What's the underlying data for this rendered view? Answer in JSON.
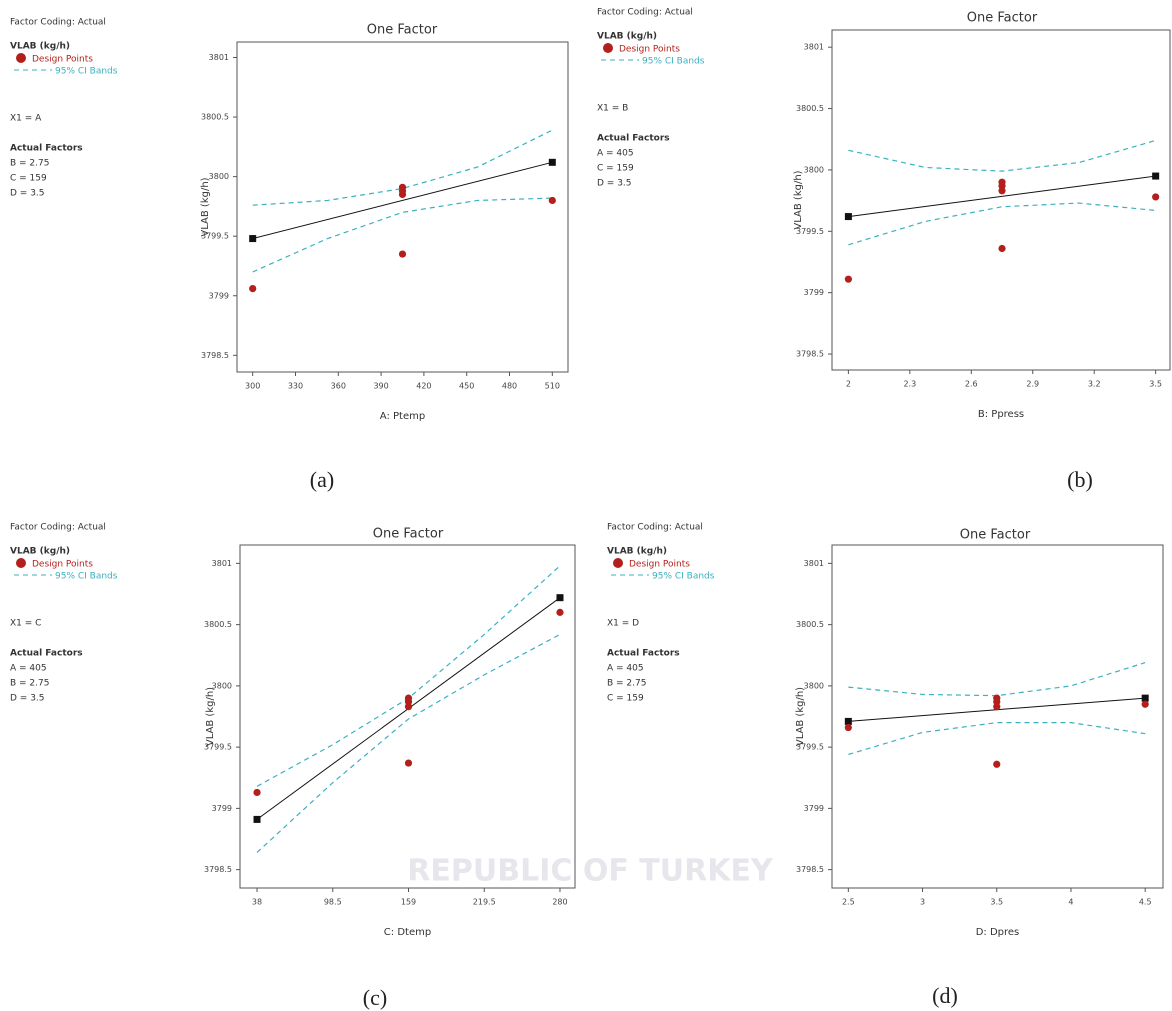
{
  "watermark": "REPUBLIC OF TURKEY",
  "chart_data": [
    {
      "type": "scatter",
      "panel_label": "(a)",
      "title": "One Factor",
      "xlabel": "A: Ptemp",
      "ylabel": "VLAB (kg/h)",
      "notes": {
        "coding": "Factor Coding: Actual",
        "response": "VLAB (kg/h)",
        "x1": "X1 = A",
        "factors_title": "Actual Factors",
        "factors": [
          "B = 2.75",
          "C = 159",
          "D = 3.5"
        ]
      },
      "xlim": [
        289,
        521
      ],
      "ylim": [
        3798.36,
        3801.13
      ],
      "xticks": [
        300,
        330,
        360,
        390,
        420,
        450,
        480,
        510
      ],
      "yticks": [
        3798.5,
        3799,
        3799.5,
        3800,
        3800.5,
        3801
      ],
      "series": [
        {
          "name": "Design Points",
          "color": "#b3201c",
          "x": [
            300,
            405,
            405,
            405,
            405,
            510
          ],
          "values": [
            3799.06,
            3799.91,
            3799.88,
            3799.85,
            3799.35,
            3799.8
          ]
        },
        {
          "name": "95% CI Bands",
          "color": "#3bb1c0",
          "x": [
            300,
            352.5,
            405,
            457.5,
            510
          ],
          "upper": [
            3799.76,
            3799.8,
            3799.9,
            3800.08,
            3800.39
          ],
          "lower": [
            3799.2,
            3799.48,
            3799.7,
            3799.8,
            3799.82
          ]
        }
      ],
      "fit": {
        "color": "#111111",
        "x": [
          300,
          510
        ],
        "values": [
          3799.48,
          3800.12
        ]
      }
    },
    {
      "type": "scatter",
      "panel_label": "(b)",
      "title": "One Factor",
      "xlabel": "B: Ppress",
      "ylabel": "VLAB (kg/h)",
      "notes": {
        "coding": "Factor Coding: Actual",
        "response": "VLAB (kg/h)",
        "x1": "X1 = B",
        "factors_title": "Actual Factors",
        "factors": [
          "A = 405",
          "C = 159",
          "D = 3.5"
        ]
      },
      "xlim": [
        1.92,
        3.57
      ],
      "ylim": [
        3798.37,
        3801.14
      ],
      "xticks": [
        2,
        2.3,
        2.6,
        2.9,
        3.2,
        3.5
      ],
      "yticks": [
        3798.5,
        3799,
        3799.5,
        3800,
        3800.5,
        3801
      ],
      "series": [
        {
          "name": "Design Points",
          "color": "#b3201c",
          "x": [
            2,
            2.75,
            2.75,
            2.75,
            2.75,
            3.5
          ],
          "values": [
            3799.11,
            3799.9,
            3799.87,
            3799.83,
            3799.36,
            3799.78
          ]
        },
        {
          "name": "95% CI Bands",
          "color": "#3bb1c0",
          "x": [
            2,
            2.375,
            2.75,
            3.125,
            3.5
          ],
          "upper": [
            3800.16,
            3800.02,
            3799.99,
            3800.06,
            3800.24
          ],
          "lower": [
            3799.39,
            3799.58,
            3799.7,
            3799.73,
            3799.67
          ]
        }
      ],
      "fit": {
        "color": "#111111",
        "x": [
          2,
          3.5
        ],
        "values": [
          3799.62,
          3799.95
        ]
      }
    },
    {
      "type": "scatter",
      "panel_label": "(c)",
      "title": "One Factor",
      "xlabel": "C: Dtemp",
      "ylabel": "VLAB (kg/h)",
      "notes": {
        "coding": "Factor Coding: Actual",
        "response": "VLAB (kg/h)",
        "x1": "X1 = C",
        "factors_title": "Actual Factors",
        "factors": [
          "A = 405",
          "B = 2.75",
          "D = 3.5"
        ]
      },
      "xlim": [
        24.4,
        292
      ],
      "ylim": [
        3798.35,
        3801.15
      ],
      "xticks": [
        38,
        98.5,
        159,
        219.5,
        280
      ],
      "yticks": [
        3798.5,
        3799,
        3799.5,
        3800,
        3800.5,
        3801
      ],
      "series": [
        {
          "name": "Design Points",
          "color": "#b3201c",
          "x": [
            38,
            159,
            159,
            159,
            159,
            280
          ],
          "values": [
            3799.13,
            3799.9,
            3799.87,
            3799.83,
            3799.37,
            3800.6
          ]
        },
        {
          "name": "95% CI Bands",
          "color": "#3bb1c0",
          "x": [
            38,
            98.5,
            159,
            219.5,
            280
          ],
          "upper": [
            3799.18,
            3799.52,
            3799.9,
            3800.42,
            3800.98
          ],
          "lower": [
            3798.64,
            3799.21,
            3799.73,
            3800.09,
            3800.42
          ]
        }
      ],
      "fit": {
        "color": "#111111",
        "x": [
          38,
          280
        ],
        "values": [
          3798.91,
          3800.72
        ]
      }
    },
    {
      "type": "scatter",
      "panel_label": "(d)",
      "title": "One Factor",
      "xlabel": "D: Dpres",
      "ylabel": "VLAB (kg/h)",
      "notes": {
        "coding": "Factor Coding: Actual",
        "response": "VLAB (kg/h)",
        "x1": "X1 = D",
        "factors_title": "Actual Factors",
        "factors": [
          "A = 405",
          "B = 2.75",
          "C = 159"
        ]
      },
      "xlim": [
        2.39,
        4.62
      ],
      "ylim": [
        3798.35,
        3801.15
      ],
      "xticks": [
        2.5,
        3,
        3.5,
        4,
        4.5
      ],
      "yticks": [
        3798.5,
        3799,
        3799.5,
        3800,
        3800.5,
        3801
      ],
      "series": [
        {
          "name": "Design Points",
          "color": "#b3201c",
          "x": [
            2.5,
            3.5,
            3.5,
            3.5,
            3.5,
            4.5
          ],
          "values": [
            3799.66,
            3799.9,
            3799.87,
            3799.83,
            3799.36,
            3799.85
          ]
        },
        {
          "name": "95% CI Bands",
          "color": "#3bb1c0",
          "x": [
            2.5,
            3,
            3.5,
            4,
            4.5
          ],
          "upper": [
            3799.99,
            3799.93,
            3799.92,
            3800.0,
            3800.19
          ],
          "lower": [
            3799.44,
            3799.62,
            3799.7,
            3799.7,
            3799.61
          ]
        }
      ],
      "fit": {
        "color": "#111111",
        "x": [
          2.5,
          4.5
        ],
        "values": [
          3799.71,
          3799.9
        ]
      }
    }
  ]
}
